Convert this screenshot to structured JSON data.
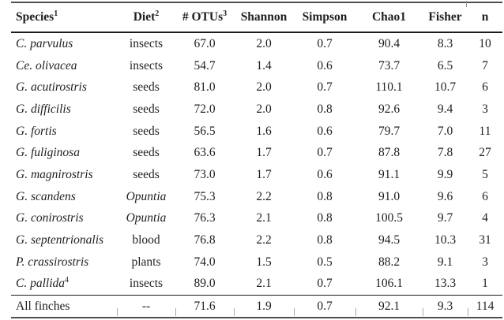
{
  "table": {
    "columns": [
      {
        "label": "Species",
        "sup": "1"
      },
      {
        "label": "Diet",
        "sup": "2"
      },
      {
        "label": "# OTUs",
        "sup": "3"
      },
      {
        "label": "Shannon",
        "sup": ""
      },
      {
        "label": "Simpson",
        "sup": ""
      },
      {
        "label": "Chao1",
        "sup": ""
      },
      {
        "label": "Fisher",
        "sup": ""
      },
      {
        "label": "n",
        "sup": ""
      }
    ],
    "rows": [
      {
        "species": "C. parvulus",
        "species_sup": "",
        "species_italic": true,
        "diet": "insects",
        "diet_italic": false,
        "values": [
          "67.0",
          "2.0",
          "0.7",
          "90.4",
          "8.3",
          "10"
        ]
      },
      {
        "species": "Ce. olivacea",
        "species_sup": "",
        "species_italic": true,
        "diet": "insects",
        "diet_italic": false,
        "values": [
          "54.7",
          "1.4",
          "0.6",
          "73.7",
          "6.5",
          "7"
        ]
      },
      {
        "species": "G. acutirostris",
        "species_sup": "",
        "species_italic": true,
        "diet": "seeds",
        "diet_italic": false,
        "values": [
          "81.0",
          "2.0",
          "0.7",
          "110.1",
          "10.7",
          "6"
        ]
      },
      {
        "species": "G. difficilis",
        "species_sup": "",
        "species_italic": true,
        "diet": "seeds",
        "diet_italic": false,
        "values": [
          "72.0",
          "2.0",
          "0.8",
          "92.6",
          "9.4",
          "3"
        ]
      },
      {
        "species": "G. fortis",
        "species_sup": "",
        "species_italic": true,
        "diet": "seeds",
        "diet_italic": false,
        "values": [
          "56.5",
          "1.6",
          "0.6",
          "79.7",
          "7.0",
          "11"
        ]
      },
      {
        "species": "G. fuliginosa",
        "species_sup": "",
        "species_italic": true,
        "diet": "seeds",
        "diet_italic": false,
        "values": [
          "63.6",
          "1.7",
          "0.7",
          "87.8",
          "7.8",
          "27"
        ]
      },
      {
        "species": "G. magnirostris",
        "species_sup": "",
        "species_italic": true,
        "diet": "seeds",
        "diet_italic": false,
        "values": [
          "73.0",
          "1.7",
          "0.6",
          "91.1",
          "9.9",
          "5"
        ]
      },
      {
        "species": "G. scandens",
        "species_sup": "",
        "species_italic": true,
        "diet": "Opuntia",
        "diet_italic": true,
        "values": [
          "75.3",
          "2.2",
          "0.8",
          "91.0",
          "9.6",
          "6"
        ]
      },
      {
        "species": "G. conirostris",
        "species_sup": "",
        "species_italic": true,
        "diet": "Opuntia",
        "diet_italic": true,
        "values": [
          "76.3",
          "2.1",
          "0.8",
          "100.5",
          "9.7",
          "4"
        ]
      },
      {
        "species": "G. septentrionalis",
        "species_sup": "",
        "species_italic": true,
        "diet": "blood",
        "diet_italic": false,
        "values": [
          "76.8",
          "2.2",
          "0.8",
          "94.5",
          "10.3",
          "31"
        ]
      },
      {
        "species": "P. crassirostris",
        "species_sup": "",
        "species_italic": true,
        "diet": "plants",
        "diet_italic": false,
        "values": [
          "74.0",
          "1.5",
          "0.5",
          "88.2",
          "9.1",
          "3"
        ]
      },
      {
        "species": "C. pallida",
        "species_sup": "4",
        "species_italic": true,
        "diet": "insects",
        "diet_italic": false,
        "values": [
          "89.0",
          "2.1",
          "0.7",
          "106.1",
          "13.3",
          "1"
        ]
      }
    ],
    "footer": {
      "species": "All finches",
      "species_sup": "",
      "species_italic": false,
      "diet": "--",
      "diet_italic": false,
      "values": [
        "71.6",
        "1.9",
        "0.7",
        "92.1",
        "9.3",
        "114"
      ]
    }
  }
}
